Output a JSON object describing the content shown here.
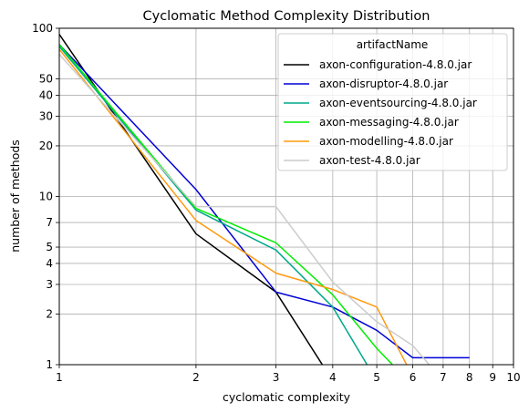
{
  "chart_data": {
    "type": "line",
    "title": "Cyclomatic Method Complexity Distribution",
    "xlabel": "cyclomatic complexity",
    "ylabel": "number of methods",
    "xscale": "log",
    "yscale": "log",
    "xlim": [
      1,
      10
    ],
    "ylim": [
      1,
      100
    ],
    "grid": true,
    "legend_position": "top-right",
    "legend_title": "artifactName",
    "x_ticks": [
      {
        "value": 1,
        "label": "1"
      },
      {
        "value": 2,
        "label": "2"
      },
      {
        "value": 3,
        "label": "3"
      },
      {
        "value": 4,
        "label": "4"
      },
      {
        "value": 5,
        "label": "5"
      },
      {
        "value": 6,
        "label": "6"
      },
      {
        "value": 7,
        "label": "7"
      },
      {
        "value": 8,
        "label": "8"
      },
      {
        "value": 9,
        "label": "9"
      },
      {
        "value": 10,
        "label": "10"
      }
    ],
    "y_ticks": [
      {
        "value": 1,
        "label": "1"
      },
      {
        "value": 2,
        "label": "2"
      },
      {
        "value": 3,
        "label": "3"
      },
      {
        "value": 4,
        "label": "4"
      },
      {
        "value": 5,
        "label": "5"
      },
      {
        "value": 7,
        "label": "7"
      },
      {
        "value": 10,
        "label": "10"
      },
      {
        "value": 20,
        "label": "20"
      },
      {
        "value": 30,
        "label": "30"
      },
      {
        "value": 40,
        "label": "40"
      },
      {
        "value": 50,
        "label": "50"
      },
      {
        "value": 100,
        "label": "100"
      }
    ],
    "series": [
      {
        "name": "axon-configuration-4.8.0.jar",
        "color": "#000000",
        "x": [
          1,
          2,
          3,
          4
        ],
        "y": [
          92,
          6,
          2.7,
          0.8
        ]
      },
      {
        "name": "axon-disruptor-4.8.0.jar",
        "color": "#0000d6",
        "x": [
          1,
          2,
          3,
          4,
          5,
          6,
          7,
          8
        ],
        "y": [
          80,
          11,
          2.7,
          2.2,
          1.6,
          1.1,
          1.1,
          1.1
        ]
      },
      {
        "name": "axon-eventsourcing-4.8.0.jar",
        "color": "#00a88a",
        "x": [
          1,
          2,
          3,
          4,
          5
        ],
        "y": [
          78,
          8.3,
          4.8,
          2.2,
          0.8
        ]
      },
      {
        "name": "axon-messaging-4.8.0.jar",
        "color": "#00ee00",
        "x": [
          1,
          2,
          3,
          4,
          5,
          6
        ],
        "y": [
          80,
          8.5,
          5.3,
          2.6,
          1.25,
          0.75
        ]
      },
      {
        "name": "axon-modelling-4.8.0.jar",
        "color": "#ff9a0f",
        "x": [
          1,
          2,
          3,
          4,
          5,
          6
        ],
        "y": [
          75,
          7.2,
          3.5,
          2.8,
          2.2,
          0.85
        ]
      },
      {
        "name": "axon-test-4.8.0.jar",
        "color": "#cccccc",
        "x": [
          1,
          2,
          3,
          4,
          5,
          6,
          7
        ],
        "y": [
          70,
          8.7,
          8.7,
          3.1,
          1.8,
          1.3,
          0.8
        ]
      }
    ]
  }
}
